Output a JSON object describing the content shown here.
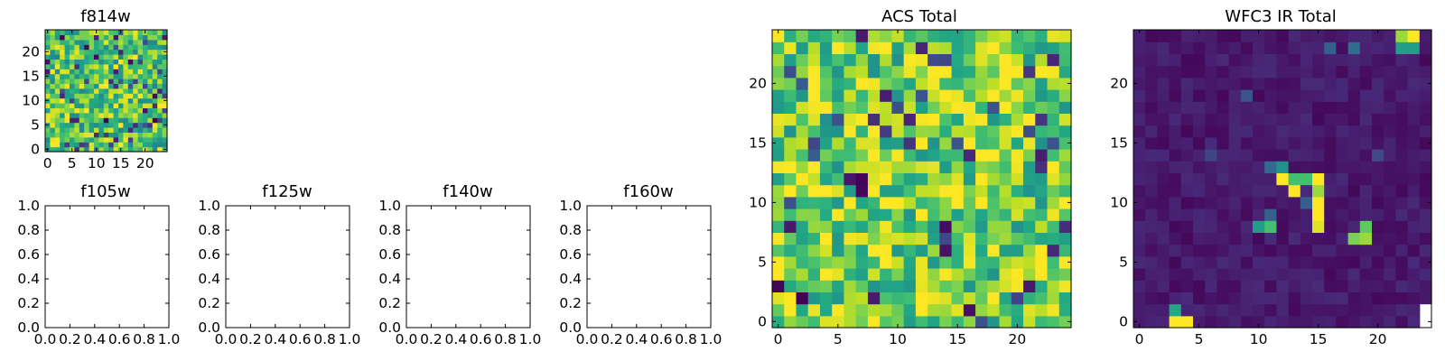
{
  "chart_data": [
    {
      "id": "f814w",
      "type": "heatmap",
      "title": "f814w",
      "grid_size": 25,
      "xlim": [
        -0.5,
        24.5
      ],
      "ylim": [
        -0.5,
        24.5
      ],
      "xticks": [
        "0",
        "5",
        "10",
        "15",
        "20"
      ],
      "yticks": [
        "0",
        "5",
        "10",
        "15",
        "20"
      ],
      "colormap": "viridis",
      "value_range": [
        0.0,
        1.0
      ],
      "pixel_values": "dense noise: 25x25 grid of mid-to-high viridis values (teal/green/yellow) with scattered dark blue/purple cells"
    },
    {
      "id": "f105w",
      "type": "empty-axes",
      "title": "f105w",
      "xlim": [
        0,
        1
      ],
      "ylim": [
        0,
        1
      ],
      "xticks": [
        "0.0",
        "0.2",
        "0.4",
        "0.6",
        "0.8",
        "1.0"
      ],
      "yticks": [
        "0.0",
        "0.2",
        "0.4",
        "0.6",
        "0.8",
        "1.0"
      ]
    },
    {
      "id": "f125w",
      "type": "empty-axes",
      "title": "f125w",
      "xlim": [
        0,
        1
      ],
      "ylim": [
        0,
        1
      ],
      "xticks": [
        "0.0",
        "0.2",
        "0.4",
        "0.6",
        "0.8",
        "1.0"
      ],
      "yticks": [
        "0.0",
        "0.2",
        "0.4",
        "0.6",
        "0.8",
        "1.0"
      ]
    },
    {
      "id": "f140w",
      "type": "empty-axes",
      "title": "f140w",
      "xlim": [
        0,
        1
      ],
      "ylim": [
        0,
        1
      ],
      "xticks": [
        "0.0",
        "0.2",
        "0.4",
        "0.6",
        "0.8",
        "1.0"
      ],
      "yticks": [
        "0.0",
        "0.2",
        "0.4",
        "0.6",
        "0.8",
        "1.0"
      ]
    },
    {
      "id": "f160w",
      "type": "empty-axes",
      "title": "f160w",
      "xlim": [
        0,
        1
      ],
      "ylim": [
        0,
        1
      ],
      "xticks": [
        "0.0",
        "0.2",
        "0.4",
        "0.6",
        "0.8",
        "1.0"
      ],
      "yticks": [
        "0.0",
        "0.2",
        "0.4",
        "0.6",
        "0.8",
        "1.0"
      ]
    },
    {
      "id": "acs_total",
      "type": "heatmap",
      "title": "ACS Total",
      "grid_size": 25,
      "xlim": [
        -0.5,
        24.5
      ],
      "ylim": [
        -0.5,
        24.5
      ],
      "xticks": [
        "0",
        "5",
        "10",
        "15",
        "20"
      ],
      "yticks": [
        "0",
        "5",
        "10",
        "15",
        "20"
      ],
      "colormap": "viridis",
      "value_range": [
        0.0,
        1.0
      ],
      "pixel_values": "dense noise: 25x25 grid of mostly green/teal/yellow viridis values with scattered dark cells"
    },
    {
      "id": "wfc3_ir_total",
      "type": "heatmap",
      "title": "WFC3 IR Total",
      "grid_size": 25,
      "xlim": [
        -0.5,
        24.5
      ],
      "ylim": [
        -0.5,
        24.5
      ],
      "xticks": [
        "0",
        "5",
        "10",
        "15",
        "20"
      ],
      "yticks": [
        "0",
        "5",
        "10",
        "15",
        "20"
      ],
      "colormap": "viridis",
      "value_range": [
        0.0,
        1.0
      ],
      "background_level": 0.05,
      "bright_cells": [
        {
          "x": 3,
          "y": 0,
          "value": 1.0
        },
        {
          "x": 4,
          "y": 0,
          "value": 1.0
        },
        {
          "x": 3,
          "y": 1,
          "value": 0.6
        },
        {
          "x": 10,
          "y": 8,
          "value": 0.55
        },
        {
          "x": 11,
          "y": 8,
          "value": 0.7
        },
        {
          "x": 11,
          "y": 9,
          "value": 0.3
        },
        {
          "x": 12,
          "y": 13,
          "value": 0.5
        },
        {
          "x": 11,
          "y": 13,
          "value": 0.35
        },
        {
          "x": 12,
          "y": 12,
          "value": 1.0
        },
        {
          "x": 13,
          "y": 12,
          "value": 0.7
        },
        {
          "x": 13,
          "y": 11,
          "value": 1.0
        },
        {
          "x": 14,
          "y": 12,
          "value": 0.7
        },
        {
          "x": 15,
          "y": 12,
          "value": 1.0
        },
        {
          "x": 15,
          "y": 11,
          "value": 0.85
        },
        {
          "x": 15,
          "y": 10,
          "value": 1.0
        },
        {
          "x": 15,
          "y": 9,
          "value": 1.0
        },
        {
          "x": 15,
          "y": 8,
          "value": 0.95
        },
        {
          "x": 14,
          "y": 10,
          "value": 0.3
        },
        {
          "x": 18,
          "y": 7,
          "value": 0.8
        },
        {
          "x": 19,
          "y": 7,
          "value": 0.85
        },
        {
          "x": 19,
          "y": 8,
          "value": 0.75
        },
        {
          "x": 22,
          "y": 24,
          "value": 0.85
        },
        {
          "x": 22,
          "y": 23,
          "value": 0.55
        },
        {
          "x": 23,
          "y": 24,
          "value": 1.0
        },
        {
          "x": 23,
          "y": 23,
          "value": 0.55
        },
        {
          "x": 18,
          "y": 23,
          "value": 0.35
        },
        {
          "x": 16,
          "y": 23,
          "value": 0.3
        },
        {
          "x": 9,
          "y": 19,
          "value": 0.25
        },
        {
          "x": 20,
          "y": 14,
          "value": 0.22
        },
        {
          "x": 6,
          "y": 14,
          "value": 0.2
        }
      ],
      "missing_cells": [
        {
          "x": 24,
          "y": 0
        },
        {
          "x": 24,
          "y": 1
        }
      ]
    }
  ]
}
